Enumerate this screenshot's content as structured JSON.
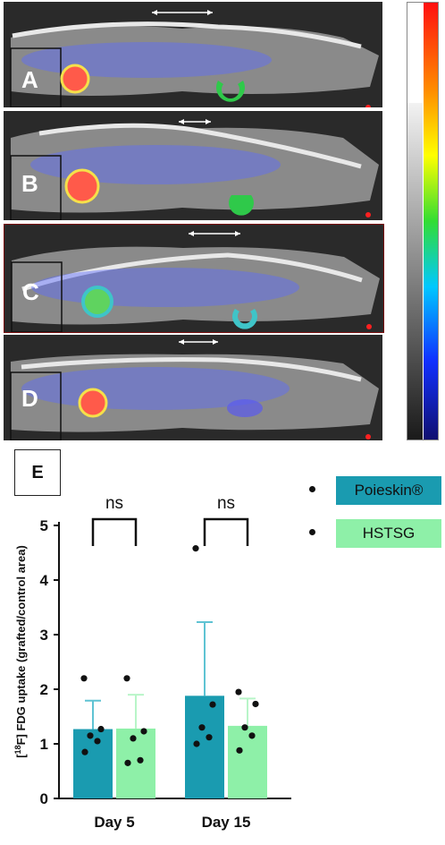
{
  "panels": [
    {
      "letter": "A",
      "tumor_color": "#ff5a4a",
      "graft_color": "#2fc94a"
    },
    {
      "letter": "B",
      "tumor_color": "#ff5a4a",
      "graft_color": "#2fc94a"
    },
    {
      "letter": "C",
      "tumor_color": "#5fd35f",
      "graft_color": "#3fc4c8"
    },
    {
      "letter": "D",
      "tumor_color": "#ff5a4a",
      "graft_color": "#5a5af0"
    }
  ],
  "colors": {
    "poieskin": "#1a9bb0",
    "hstsg": "#8ef0a8"
  },
  "chart_data": {
    "type": "bar",
    "panel_label": "E",
    "categories": [
      "Day 5",
      "Day 15"
    ],
    "ylabel": "[18F] FDG uptake (grafted/control area)",
    "ylabel_pre": "[",
    "ylabel_sup": "18",
    "ylabel_post": "F] FDG uptake (grafted/control area)",
    "ylim": [
      0,
      5
    ],
    "yticks": [
      "0",
      "1",
      "2",
      "3",
      "4",
      "5"
    ],
    "legend_position": "top-right",
    "series": [
      {
        "name": "Poieskin®",
        "values": [
          1.27,
          1.88
        ],
        "errors": [
          0.52,
          1.35
        ],
        "points": [
          [
            2.2,
            1.27,
            1.15,
            1.05,
            0.85
          ],
          [
            4.58,
            1.72,
            1.3,
            1.12,
            1.0
          ]
        ]
      },
      {
        "name": "HSTSG",
        "values": [
          1.28,
          1.33
        ],
        "errors": [
          0.62,
          0.5
        ],
        "points": [
          [
            2.2,
            1.23,
            1.1,
            0.7,
            0.65
          ],
          [
            1.95,
            1.73,
            1.3,
            1.15,
            0.88
          ]
        ]
      }
    ],
    "significance": [
      "ns",
      "ns"
    ]
  }
}
